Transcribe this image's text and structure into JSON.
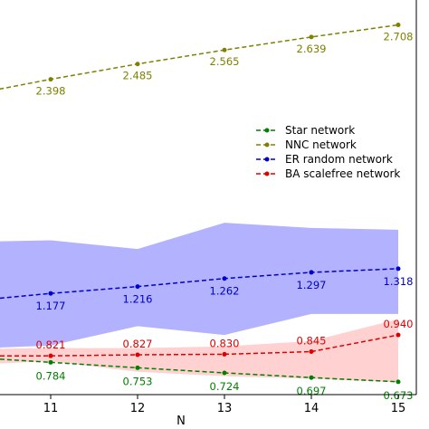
{
  "chart_data": {
    "type": "line",
    "xlabel": "N",
    "ylabel": "",
    "title": "",
    "x_ticks": [
      11,
      12,
      13,
      14,
      15
    ],
    "xlim": [
      10.4,
      15.25
    ],
    "ylim": [
      0.6,
      2.85
    ],
    "grid": false,
    "legend_position": "center-right",
    "series": [
      {
        "name": "Star network",
        "color": "#008000",
        "x": [
          10,
          11,
          12,
          13,
          14,
          15
        ],
        "y": [
          0.815,
          0.784,
          0.753,
          0.724,
          0.697,
          0.673
        ],
        "labels": [
          "",
          "0.784",
          "0.753",
          "0.724",
          "0.697",
          "0.673"
        ]
      },
      {
        "name": "NNC network",
        "color": "#808000",
        "x": [
          10,
          11,
          12,
          13,
          14,
          15
        ],
        "y": [
          2.303,
          2.398,
          2.485,
          2.565,
          2.639,
          2.708
        ],
        "labels": [
          "",
          "2.398",
          "2.485",
          "2.565",
          "2.639",
          "2.708"
        ]
      },
      {
        "name": "ER random network",
        "color": "#0000cc",
        "x": [
          10,
          11,
          12,
          13,
          14,
          15
        ],
        "y": [
          1.13,
          1.177,
          1.216,
          1.262,
          1.297,
          1.318
        ],
        "labels": [
          "",
          "1.177",
          "1.216",
          "1.262",
          "1.297",
          "1.318"
        ],
        "band_color": "#0000ff",
        "band_upper": [
          1.47,
          1.48,
          1.43,
          1.58,
          1.55,
          1.54
        ],
        "band_lower": [
          0.86,
          0.88,
          0.99,
          0.94,
          1.06,
          1.06
        ]
      },
      {
        "name": "BA scalefree network",
        "color": "#dd0000",
        "x": [
          10,
          11,
          12,
          13,
          14,
          15
        ],
        "y": [
          0.82,
          0.821,
          0.827,
          0.83,
          0.845,
          0.94
        ],
        "labels": [
          "",
          "0.821",
          "0.827",
          "0.830",
          "0.845",
          "0.940"
        ],
        "band_color": "#ff6666",
        "band_upper": [
          0.86,
          0.865,
          0.865,
          0.875,
          0.905,
          1.03
        ],
        "band_lower": [
          0.77,
          0.79,
          0.73,
          0.705,
          0.69,
          0.67
        ]
      }
    ]
  }
}
